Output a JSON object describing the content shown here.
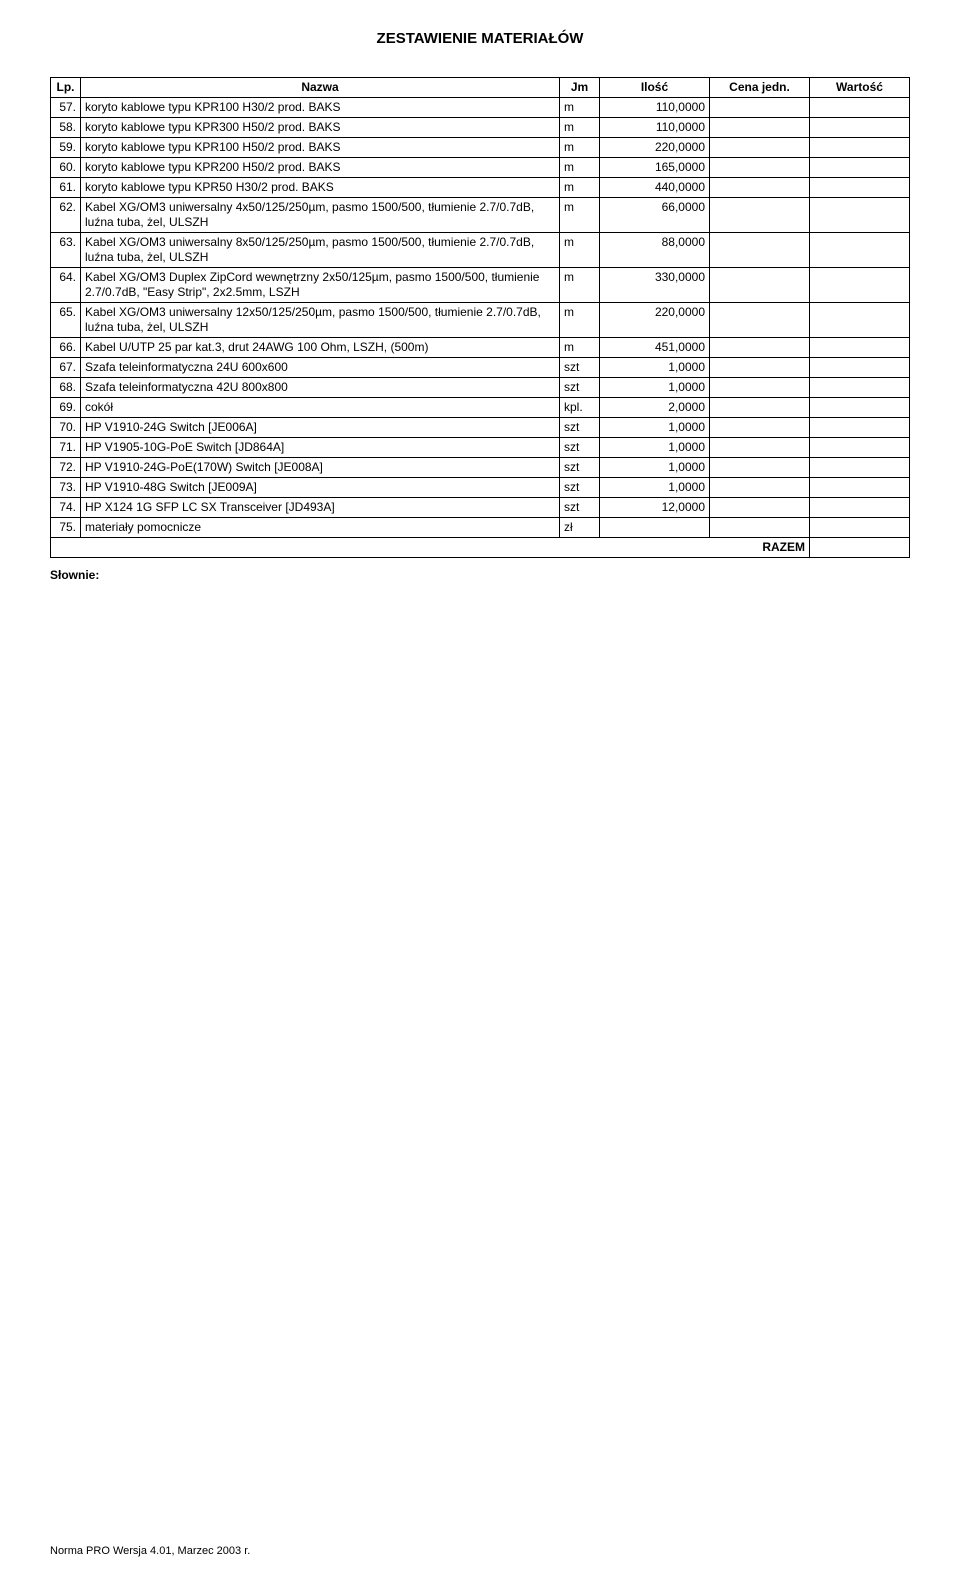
{
  "doc_title": "ZESTAWIENIE MATERIAŁÓW",
  "headers": {
    "lp": "Lp.",
    "name": "Nazwa",
    "jm": "Jm",
    "qty": "Ilość",
    "price": "Cena jedn.",
    "value": "Wartość"
  },
  "rows": [
    {
      "lp": "57.",
      "name": "koryto kablowe typu KPR100 H30/2 prod. BAKS",
      "jm": "m",
      "qty": "110,0000"
    },
    {
      "lp": "58.",
      "name": "koryto kablowe typu KPR300 H50/2 prod. BAKS",
      "jm": "m",
      "qty": "110,0000"
    },
    {
      "lp": "59.",
      "name": "koryto kablowe typu KPR100 H50/2 prod. BAKS",
      "jm": "m",
      "qty": "220,0000"
    },
    {
      "lp": "60.",
      "name": "koryto kablowe typu KPR200 H50/2 prod. BAKS",
      "jm": "m",
      "qty": "165,0000"
    },
    {
      "lp": "61.",
      "name": "koryto kablowe typu KPR50 H30/2 prod. BAKS",
      "jm": "m",
      "qty": "440,0000"
    },
    {
      "lp": "62.",
      "name": "Kabel XG/OM3 uniwersalny 4x50/125/250µm, pasmo 1500/500, tłumienie 2.7/0.7dB, luźna tuba, żel, ULSZH",
      "jm": "m",
      "qty": "66,0000"
    },
    {
      "lp": "63.",
      "name": "Kabel XG/OM3 uniwersalny 8x50/125/250µm, pasmo 1500/500, tłumienie 2.7/0.7dB, luźna tuba, żel, ULSZH",
      "jm": "m",
      "qty": "88,0000"
    },
    {
      "lp": "64.",
      "name": "Kabel XG/OM3 Duplex ZipCord wewnętrzny 2x50/125µm, pasmo 1500/500, tłumienie 2.7/0.7dB, \"Easy Strip\", 2x2.5mm, LSZH",
      "jm": "m",
      "qty": "330,0000"
    },
    {
      "lp": "65.",
      "name": "Kabel XG/OM3 uniwersalny 12x50/125/250µm, pasmo 1500/500, tłumienie 2.7/0.7dB, luźna tuba, żel, ULSZH",
      "jm": "m",
      "qty": "220,0000"
    },
    {
      "lp": "66.",
      "name": "Kabel U/UTP 25 par kat.3, drut 24AWG 100 Ohm, LSZH, (500m)",
      "jm": "m",
      "qty": "451,0000"
    },
    {
      "lp": "67.",
      "name": "Szafa teleinformatyczna 24U 600x600",
      "jm": "szt",
      "qty": "1,0000"
    },
    {
      "lp": "68.",
      "name": "Szafa teleinformatyczna 42U 800x800",
      "jm": "szt",
      "qty": "1,0000"
    },
    {
      "lp": "69.",
      "name": "cokół",
      "jm": "kpl.",
      "qty": "2,0000"
    },
    {
      "lp": "70.",
      "name": "HP V1910-24G Switch [JE006A]",
      "jm": "szt",
      "qty": "1,0000"
    },
    {
      "lp": "71.",
      "name": "HP V1905-10G-PoE Switch [JD864A]",
      "jm": "szt",
      "qty": "1,0000"
    },
    {
      "lp": "72.",
      "name": "HP V1910-24G-PoE(170W) Switch [JE008A]",
      "jm": "szt",
      "qty": "1,0000"
    },
    {
      "lp": "73.",
      "name": "HP V1910-48G Switch [JE009A]",
      "jm": "szt",
      "qty": "1,0000"
    },
    {
      "lp": "74.",
      "name": "HP X124 1G SFP LC SX Transceiver [JD493A]",
      "jm": "szt",
      "qty": "12,0000"
    },
    {
      "lp": "75.",
      "name": "materiały pomocnicze",
      "jm": "zł",
      "qty": ""
    }
  ],
  "razem_label": "RAZEM",
  "slownie_label": "Słownie:",
  "footer": "Norma PRO Wersja 4.01, Marzec 2003 r."
}
